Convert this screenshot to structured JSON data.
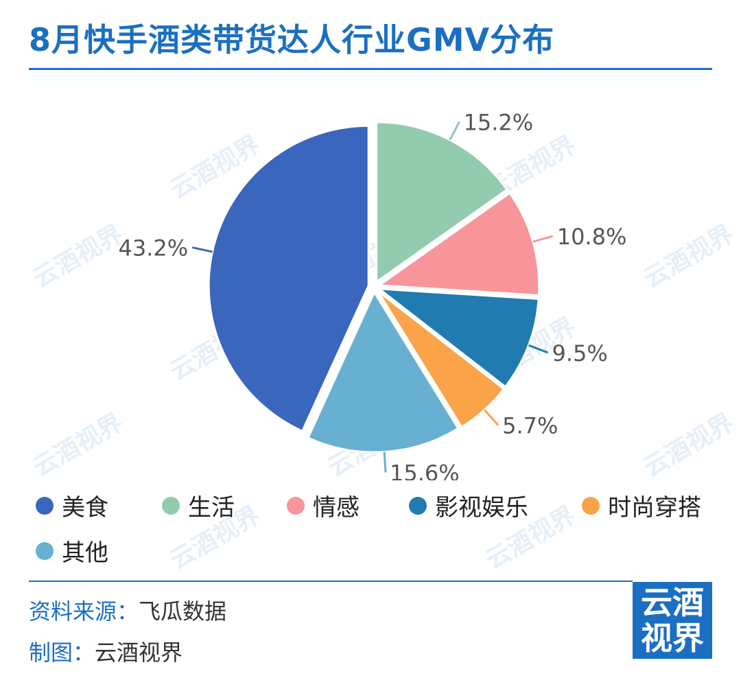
{
  "title": "8月快手酒类带货达人行业GMV分布",
  "chart_data": {
    "type": "pie",
    "title": "8月快手酒类带货达人行业GMV分布",
    "unit": "%",
    "legend_position": "bottom",
    "slices": [
      {
        "name": "美食",
        "value": 43.2,
        "label": "43.2%",
        "color": "#3b66bd"
      },
      {
        "name": "生活",
        "value": 15.2,
        "label": "15.2%",
        "color": "#92cbad"
      },
      {
        "name": "情感",
        "value": 10.8,
        "label": "10.8%",
        "color": "#f8959a"
      },
      {
        "name": "影视娱乐",
        "value": 9.5,
        "label": "9.5%",
        "color": "#1f7bb0"
      },
      {
        "name": "时尚穿搭",
        "value": 5.7,
        "label": "5.7%",
        "color": "#fba348"
      },
      {
        "name": "其他",
        "value": 15.6,
        "label": "15.6%",
        "color": "#67b0d1"
      }
    ]
  },
  "footer": {
    "source_key": "资料来源：",
    "source_val": "飞瓜数据",
    "maker_key": "制图：",
    "maker_val": "云酒视界"
  },
  "logo": {
    "line1": "云酒",
    "line2": "视界"
  },
  "watermark": "云酒视界",
  "colors": {
    "accent": "#1b6fc2"
  }
}
